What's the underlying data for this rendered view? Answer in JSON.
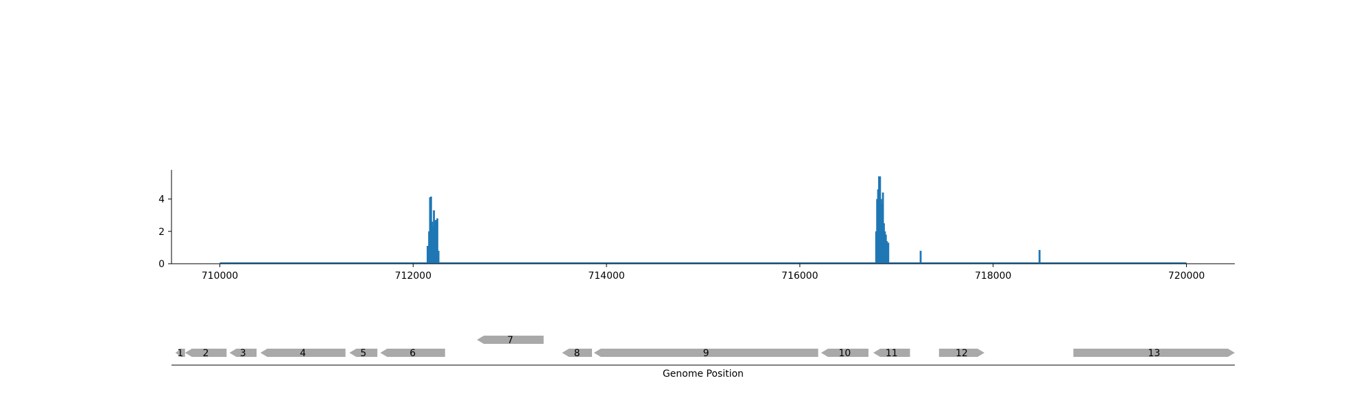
{
  "chart_data": [
    {
      "type": "bar",
      "title": "",
      "xlabel": "",
      "ylabel": "",
      "xlim": [
        709500,
        720500
      ],
      "ylim": [
        0,
        5.8
      ],
      "xticks": [
        710000,
        712000,
        714000,
        716000,
        718000,
        720000
      ],
      "xtick_labels": [
        "710000",
        "712000",
        "714000",
        "716000",
        "718000",
        "720000"
      ],
      "yticks": [
        0,
        2,
        4
      ],
      "ytick_labels": [
        "0",
        "2",
        "4"
      ],
      "baseline_range": [
        710000,
        720000
      ],
      "color": "#1f77b4",
      "grid": false,
      "points": [
        {
          "x": 712150,
          "y": 1.1
        },
        {
          "x": 712165,
          "y": 2.0
        },
        {
          "x": 712175,
          "y": 4.1
        },
        {
          "x": 712185,
          "y": 4.15
        },
        {
          "x": 712195,
          "y": 2.6
        },
        {
          "x": 712205,
          "y": 2.3
        },
        {
          "x": 712215,
          "y": 3.3
        },
        {
          "x": 712225,
          "y": 2.5
        },
        {
          "x": 712235,
          "y": 2.7
        },
        {
          "x": 712250,
          "y": 2.8
        },
        {
          "x": 712262,
          "y": 0.8
        },
        {
          "x": 716790,
          "y": 2.0
        },
        {
          "x": 716800,
          "y": 4.0
        },
        {
          "x": 716810,
          "y": 4.6
        },
        {
          "x": 716820,
          "y": 5.4
        },
        {
          "x": 716830,
          "y": 5.4
        },
        {
          "x": 716840,
          "y": 4.0
        },
        {
          "x": 716850,
          "y": 3.7
        },
        {
          "x": 716860,
          "y": 4.4
        },
        {
          "x": 716870,
          "y": 2.5
        },
        {
          "x": 716880,
          "y": 2.0
        },
        {
          "x": 716890,
          "y": 1.8
        },
        {
          "x": 716900,
          "y": 1.4
        },
        {
          "x": 716915,
          "y": 1.3
        },
        {
          "x": 717250,
          "y": 0.8
        },
        {
          "x": 718480,
          "y": 0.85
        }
      ]
    },
    {
      "type": "gene_track",
      "xlabel": "Genome Position",
      "xlim": [
        709500,
        720500
      ],
      "color": "#a9a9a9",
      "genes": [
        {
          "label": "1",
          "start": 709540,
          "end": 709640,
          "strand": "-",
          "row": 0
        },
        {
          "label": "2",
          "start": 709640,
          "end": 710070,
          "strand": "-",
          "row": 0
        },
        {
          "label": "3",
          "start": 710100,
          "end": 710380,
          "strand": "-",
          "row": 0
        },
        {
          "label": "4",
          "start": 710420,
          "end": 711300,
          "strand": "-",
          "row": 0
        },
        {
          "label": "5",
          "start": 711340,
          "end": 711630,
          "strand": "-",
          "row": 0
        },
        {
          "label": "6",
          "start": 711660,
          "end": 712330,
          "strand": "-",
          "row": 0
        },
        {
          "label": "7",
          "start": 712660,
          "end": 713350,
          "strand": "-",
          "row": 1
        },
        {
          "label": "8",
          "start": 713540,
          "end": 713850,
          "strand": "-",
          "row": 0
        },
        {
          "label": "9",
          "start": 713870,
          "end": 716190,
          "strand": "-",
          "row": 0
        },
        {
          "label": "10",
          "start": 716220,
          "end": 716710,
          "strand": "-",
          "row": 0
        },
        {
          "label": "11",
          "start": 716760,
          "end": 717140,
          "strand": "-",
          "row": 0
        },
        {
          "label": "12",
          "start": 717440,
          "end": 717910,
          "strand": "+",
          "row": 0
        },
        {
          "label": "13",
          "start": 718830,
          "end": 720500,
          "strand": "+",
          "row": 0
        }
      ]
    }
  ]
}
